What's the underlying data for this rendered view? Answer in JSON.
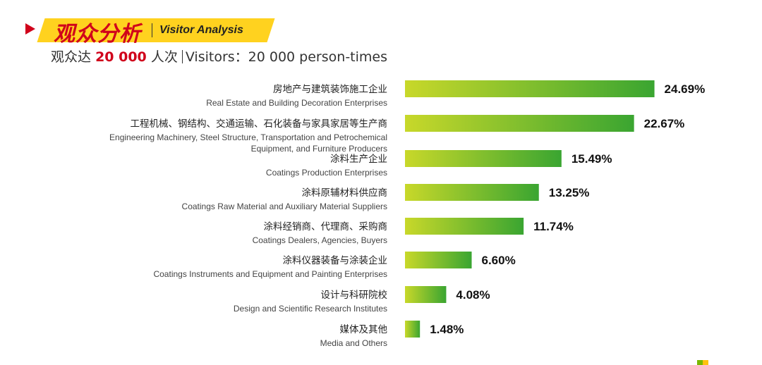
{
  "header": {
    "title_cn": "观众分析",
    "title_en": "Visitor Analysis",
    "subtitle_prefix": "观众达",
    "subtitle_number": "20 000",
    "subtitle_suffix": "人次",
    "subtitle_en": "Visitors：20 000 person-times"
  },
  "colors": {
    "accent_red": "#d0021b",
    "title_band_yellow": "#ffd21f",
    "bar_gradient_start": "#c8d82a",
    "bar_gradient_end": "#3aa531"
  },
  "chart_data": {
    "type": "bar",
    "orientation": "horizontal",
    "title": "",
    "xlabel": "",
    "ylabel": "",
    "xlim": [
      0,
      25
    ],
    "unit": "%",
    "categories": [
      {
        "cn": "房地产与建筑装饰施工企业",
        "en": [
          "Real Estate and Building Decoration Enterprises"
        ]
      },
      {
        "cn": "工程机械、钢结构、交通运输、石化装备与家具家居等生产商",
        "en": [
          "Engineering Machinery, Steel Structure, Transportation and Petrochemical",
          "Equipment, and Furniture Producers"
        ]
      },
      {
        "cn": "涂料生产企业",
        "en": [
          "Coatings Production Enterprises"
        ]
      },
      {
        "cn": "涂料原辅材料供应商",
        "en": [
          "Coatings Raw Material and Auxiliary Material Suppliers"
        ]
      },
      {
        "cn": "涂料经销商、代理商、采购商",
        "en": [
          "Coatings Dealers, Agencies, Buyers"
        ]
      },
      {
        "cn": "涂料仪器装备与涂装企业",
        "en": [
          "Coatings Instruments and Equipment and Painting Enterprises"
        ]
      },
      {
        "cn": "设计与科研院校",
        "en": [
          "Design and Scientific Research Institutes"
        ]
      },
      {
        "cn": "媒体及其他",
        "en": [
          "Media and Others"
        ]
      }
    ],
    "values": [
      24.69,
      22.67,
      15.49,
      13.25,
      11.74,
      6.6,
      4.08,
      1.48
    ],
    "value_labels": [
      "24.69%",
      "22.67%",
      "15.49%",
      "13.25%",
      "11.74%",
      "6.60%",
      "4.08%",
      "1.48%"
    ],
    "grid": false,
    "legend": "none"
  }
}
